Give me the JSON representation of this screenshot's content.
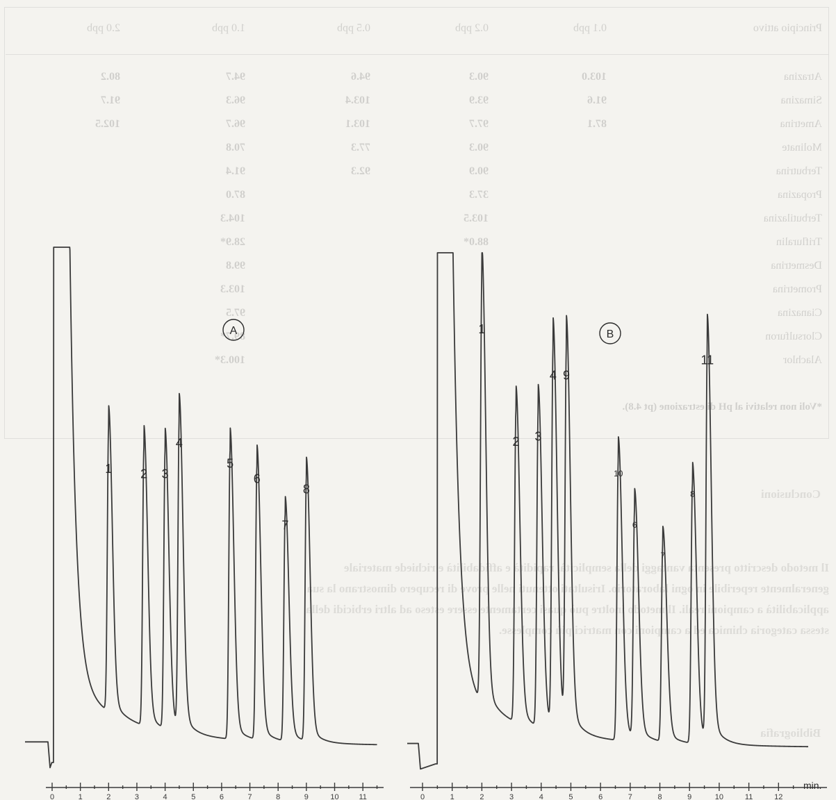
{
  "bleed_through": {
    "header": [
      "Principio attivo",
      "0.1 ppb",
      "0.2 ppb",
      "0.5 ppb",
      "1.0 ppb",
      "2.0 ppb"
    ],
    "rows": [
      [
        "Atrazina",
        "103.0",
        "90.3",
        "94.6",
        "94.7",
        "80.2"
      ],
      [
        "Simazina",
        "91.6",
        "93.9",
        "103.4",
        "96.3",
        "91.7"
      ],
      [
        "Ametrina",
        "87.1",
        "97.7",
        "103.1",
        "96.7",
        "102.5"
      ],
      [
        "Molinate",
        "",
        "90.3",
        "77.3",
        "70.8",
        ""
      ],
      [
        "Terbutrina",
        "",
        "90.9",
        "92.3",
        "91.4",
        ""
      ],
      [
        "Propazina",
        "",
        "37.3",
        "",
        "87.0",
        ""
      ],
      [
        "Terbutilazina",
        "",
        "103.5",
        "",
        "104.3",
        ""
      ],
      [
        "Trifluralin",
        "",
        "88.0*",
        "",
        "28.9*",
        ""
      ],
      [
        "Desmetrina",
        "",
        "",
        "",
        "99.8",
        ""
      ],
      [
        "Prometrina",
        "",
        "",
        "",
        "103.3",
        ""
      ],
      [
        "Cianazina",
        "",
        "",
        "",
        "97.5",
        ""
      ],
      [
        "Clorsulfuron",
        "",
        "",
        "",
        "89.7*",
        ""
      ],
      [
        "Alachlor",
        "",
        "",
        "",
        "100.3*",
        ""
      ]
    ],
    "footnote": "*Voli non relativi al pH di estrazione (pt 4.8).",
    "section_title": "Conclusioni",
    "paragraph": [
      "Il metodo descritto presenta vantaggi della semplicità, rapidità e affidabilità e richiede materiale",
      "generalmente reperibile in ogni laboratorio. Irisultati ottenuti nelle prove di recupero dimostrano la sua",
      "applicabilità a campioni reali. Il metodo inoltre può quasi certamente essere esteso ad altri erbicidi della",
      "stessa categoria chimica ed a campioni con matrici più complesse."
    ],
    "biblio_title": "Bibliografia"
  },
  "chart_data": [
    {
      "type": "line",
      "panel_label": "A",
      "x_unit": "",
      "x_ticks": [
        "0",
        "1",
        "2",
        "3",
        "4",
        "5",
        "6",
        "7",
        "8",
        "9",
        "10",
        "11"
      ],
      "xlim": [
        0,
        11.5
      ],
      "ylim": [
        0,
        100
      ],
      "solvent_front": {
        "start": 0.05,
        "end": 0.6,
        "height": 100
      },
      "peaks": [
        {
          "label": "1",
          "rt": 2.0,
          "height": 55
        },
        {
          "label": "2",
          "rt": 3.25,
          "height": 54
        },
        {
          "label": "3",
          "rt": 4.0,
          "height": 54
        },
        {
          "label": "4",
          "rt": 4.5,
          "height": 60
        },
        {
          "label": "5",
          "rt": 6.3,
          "height": 56
        },
        {
          "label": "6",
          "rt": 7.25,
          "height": 53
        },
        {
          "label": "7",
          "rt": 8.25,
          "height": 44
        },
        {
          "label": "8",
          "rt": 9.0,
          "height": 51
        }
      ]
    },
    {
      "type": "line",
      "panel_label": "B",
      "x_unit": "min.",
      "x_ticks": [
        "0",
        "1",
        "2",
        "3",
        "4",
        "5",
        "6",
        "7",
        "8",
        "9",
        "10",
        "11",
        "12"
      ],
      "xlim": [
        0,
        13
      ],
      "ylim": [
        0,
        100
      ],
      "solvent_front": {
        "start": 0.5,
        "end": 1.0,
        "height": 100
      },
      "peaks": [
        {
          "label": "1",
          "rt": 2.0,
          "height": 83
        },
        {
          "label": "2",
          "rt": 3.15,
          "height": 61
        },
        {
          "label": "3",
          "rt": 3.9,
          "height": 62
        },
        {
          "label": "4",
          "rt": 4.4,
          "height": 74
        },
        {
          "label": "9",
          "rt": 4.85,
          "height": 74
        },
        {
          "label": "10",
          "rt": 6.6,
          "height": 55
        },
        {
          "label": "6",
          "rt": 7.15,
          "height": 45
        },
        {
          "label": "7",
          "rt": 8.1,
          "height": 39
        },
        {
          "label": "8",
          "rt": 9.1,
          "height": 51
        },
        {
          "label": "11",
          "rt": 9.6,
          "height": 77
        }
      ]
    }
  ]
}
